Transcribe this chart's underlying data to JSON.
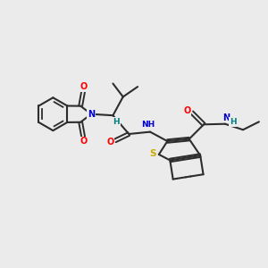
{
  "background_color": "#ebebeb",
  "bond_color": "#2d2d2d",
  "atom_colors": {
    "N": "#0000cc",
    "O": "#ff0000",
    "S": "#ccaa00",
    "H": "#008080",
    "C": "#2d2d2d"
  },
  "figsize": [
    3.0,
    3.0
  ],
  "dpi": 100
}
